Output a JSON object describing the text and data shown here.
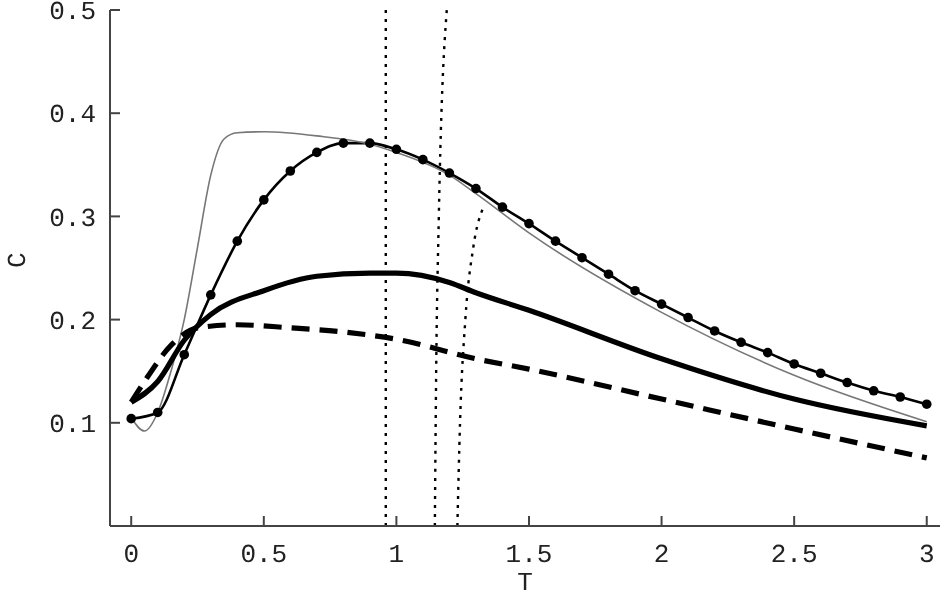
{
  "chart_data": {
    "type": "line",
    "xlabel": "T",
    "ylabel": "C",
    "xlim": [
      -0.08,
      3.05
    ],
    "xticks": [
      0,
      0.5,
      1,
      1.5,
      2,
      2.5,
      3
    ],
    "ylim": [
      0,
      0.5
    ],
    "yticks": [
      0.1,
      0.2,
      0.3,
      0.4,
      0.5
    ],
    "ref_lines": [
      {
        "axis": "x",
        "value": 0.96,
        "color": "#000000",
        "line_style": "dotted"
      }
    ],
    "series": [
      {
        "color": "#000000",
        "marker": "circle",
        "line_style": "solid",
        "x": [
          0,
          0.1,
          0.2,
          0.3,
          0.4,
          0.5,
          0.6,
          0.7,
          0.8,
          0.9,
          1.0,
          1.1,
          1.2,
          1.3,
          1.4,
          1.5,
          1.6,
          1.7,
          1.8,
          1.9,
          2.0,
          2.1,
          2.2,
          2.3,
          2.4,
          2.5,
          2.6,
          2.7,
          2.8,
          2.9,
          3.0
        ],
        "values": [
          0.104,
          0.11,
          0.166,
          0.224,
          0.276,
          0.316,
          0.344,
          0.362,
          0.371,
          0.371,
          0.365,
          0.355,
          0.342,
          0.327,
          0.309,
          0.293,
          0.276,
          0.26,
          0.244,
          0.228,
          0.215,
          0.202,
          0.189,
          0.178,
          0.168,
          0.157,
          0.148,
          0.139,
          0.131,
          0.125,
          0.118
        ]
      },
      {
        "color": "#777777",
        "marker": "none",
        "line_style": "solid",
        "x": [
          0,
          0.05,
          0.1,
          0.15,
          0.2,
          0.25,
          0.3,
          0.35,
          0.4,
          0.5,
          0.7,
          0.9,
          1.0,
          1.2,
          1.3,
          1.5,
          2.0,
          2.5,
          3.0
        ],
        "values": [
          0.105,
          0.092,
          0.11,
          0.15,
          0.2,
          0.27,
          0.34,
          0.375,
          0.381,
          0.382,
          0.378,
          0.37,
          0.362,
          0.34,
          0.322,
          0.284,
          0.207,
          0.146,
          0.101
        ]
      },
      {
        "color": "#000000",
        "marker": "none",
        "line_style": "solid",
        "x": [
          0,
          0.1,
          0.2,
          0.3,
          0.5,
          0.7,
          0.9,
          1.0,
          1.2,
          1.3,
          1.5,
          2.0,
          2.5,
          3.0
        ],
        "values": [
          0.12,
          0.14,
          0.18,
          0.205,
          0.228,
          0.242,
          0.245,
          0.245,
          0.236,
          0.226,
          0.209,
          0.162,
          0.123,
          0.097
        ]
      },
      {
        "color": "#000000",
        "marker": "none",
        "line_style": "dashed",
        "x": [
          0,
          0.05,
          0.15,
          0.25,
          0.4,
          0.6,
          0.8,
          1.0,
          1.3,
          1.5,
          2.0,
          2.5,
          3.0
        ],
        "values": [
          0.12,
          0.14,
          0.175,
          0.192,
          0.195,
          0.192,
          0.188,
          0.181,
          0.162,
          0.152,
          0.123,
          0.094,
          0.066
        ]
      },
      {
        "color": "#000000",
        "marker": "none",
        "line_style": "dotted",
        "x": [
          1.145,
          1.15,
          1.16,
          1.19
        ],
        "values": [
          0,
          0.15,
          0.3,
          0.5
        ]
      },
      {
        "color": "#000000",
        "marker": "none",
        "line_style": "dotted",
        "x": [
          1.23,
          1.24,
          1.26,
          1.29,
          1.33
        ],
        "values": [
          0,
          0.1,
          0.2,
          0.27,
          0.31
        ]
      }
    ]
  }
}
